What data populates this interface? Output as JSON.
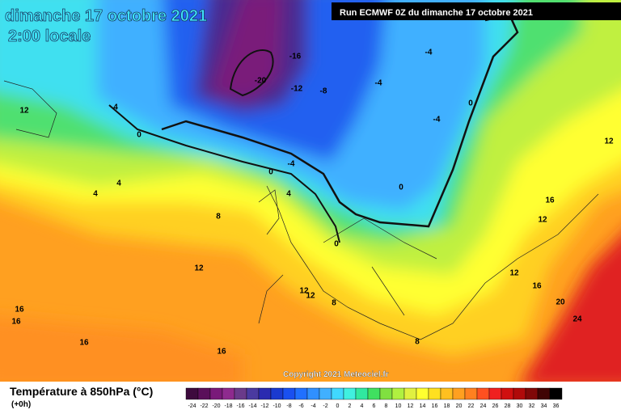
{
  "header": {
    "date": "dimanche 17 octobre 2021",
    "time": "2:00 locale",
    "run": "Run ECMWF 0Z du dimanche 17 octobre 2021"
  },
  "copyright": "Copyright 2021 Meteociel.fr",
  "map": {
    "contour_labels": [
      "-16",
      "-20",
      "-12",
      "-8",
      "-4",
      "-4",
      "0",
      "-4",
      "-4",
      "0",
      "0",
      "4",
      "0",
      "12",
      "4",
      "4",
      "8",
      "4",
      "0",
      "12",
      "12",
      "12",
      "8",
      "12",
      "16",
      "20",
      "24",
      "16",
      "12",
      "12",
      "16",
      "16",
      "16",
      "16",
      "8"
    ]
  },
  "legend": {
    "title": "Température à 850hPa (°C)",
    "subtitle": "(+0h)",
    "scale": [
      {
        "value": -24,
        "color": "#3d0a3d"
      },
      {
        "value": -22,
        "color": "#5a0f5a"
      },
      {
        "value": -20,
        "color": "#7a1a7a"
      },
      {
        "value": -18,
        "color": "#8e2a8e"
      },
      {
        "value": -16,
        "color": "#6a3a8a"
      },
      {
        "value": -14,
        "color": "#4a3aa0"
      },
      {
        "value": -12,
        "color": "#2a2ab0"
      },
      {
        "value": -10,
        "color": "#1a3ad0"
      },
      {
        "value": -8,
        "color": "#1a50f0"
      },
      {
        "value": -6,
        "color": "#2070ff"
      },
      {
        "value": -4,
        "color": "#3090ff"
      },
      {
        "value": -2,
        "color": "#40b0ff"
      },
      {
        "value": 0,
        "color": "#40d8ff"
      },
      {
        "value": 2,
        "color": "#40f0e0"
      },
      {
        "value": 4,
        "color": "#30e8a0"
      },
      {
        "value": 6,
        "color": "#40e060"
      },
      {
        "value": 8,
        "color": "#80e040"
      },
      {
        "value": 10,
        "color": "#b0f040"
      },
      {
        "value": 12,
        "color": "#e0f040"
      },
      {
        "value": 14,
        "color": "#ffff30"
      },
      {
        "value": 16,
        "color": "#ffe020"
      },
      {
        "value": 18,
        "color": "#ffc020"
      },
      {
        "value": 20,
        "color": "#ffa020"
      },
      {
        "value": 22,
        "color": "#ff8020"
      },
      {
        "value": 24,
        "color": "#ff5020"
      },
      {
        "value": 26,
        "color": "#f02020"
      },
      {
        "value": 28,
        "color": "#d01010"
      },
      {
        "value": 30,
        "color": "#b00a0a"
      },
      {
        "value": 32,
        "color": "#800808"
      },
      {
        "value": 34,
        "color": "#400404"
      },
      {
        "value": 36,
        "color": "#000000"
      }
    ]
  }
}
